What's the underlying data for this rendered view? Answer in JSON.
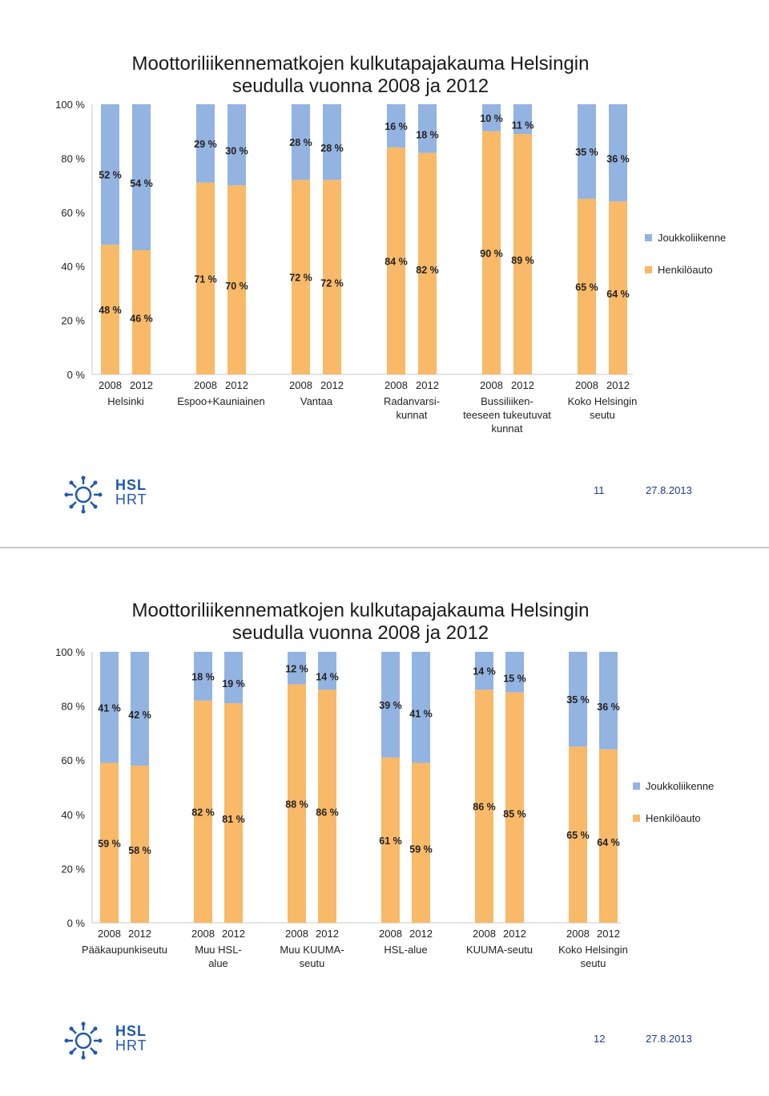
{
  "colors": {
    "henkiloauto": "#F8B968",
    "joukkoliikenne": "#93B3E1",
    "brand": "#1f57b3"
  },
  "slides": [
    {
      "title_line1": "Moottoriliikennematkojen kulkutapajakauma Helsingin",
      "title_line2": "seudulla vuonna 2008 ja 2012",
      "page_number": "11",
      "date": "27.8.2013",
      "logo_hsl": "HSL",
      "logo_hrt": "HRT",
      "chart_data": {
        "type": "bar",
        "stacked": true,
        "y_ticks": [
          "0 %",
          "20 %",
          "40 %",
          "60 %",
          "80 %",
          "100 %"
        ],
        "ylim": [
          0,
          100
        ],
        "legend": [
          "Joukkoliikenne",
          "Henkilöauto"
        ],
        "groups": [
          {
            "label_lines": [
              "Helsinki"
            ],
            "years": [
              "2008",
              "2012"
            ],
            "henkiloauto": [
              48,
              46
            ],
            "joukkoliikenne": [
              52,
              54
            ],
            "labels_auto": [
              "48 %",
              "46 %"
            ],
            "labels_jl": [
              "52 %",
              "54 %"
            ]
          },
          {
            "label_lines": [
              "Espoo+Kauniainen"
            ],
            "years": [
              "2008",
              "2012"
            ],
            "henkiloauto": [
              71,
              70
            ],
            "joukkoliikenne": [
              29,
              30
            ],
            "labels_auto": [
              "71 %",
              "70 %"
            ],
            "labels_jl": [
              "29 %",
              "30 %"
            ]
          },
          {
            "label_lines": [
              "Vantaa"
            ],
            "years": [
              "2008",
              "2012"
            ],
            "henkiloauto": [
              72,
              72
            ],
            "joukkoliikenne": [
              28,
              28
            ],
            "labels_auto": [
              "72 %",
              "72 %"
            ],
            "labels_jl": [
              "28 %",
              "28 %"
            ]
          },
          {
            "label_lines": [
              "Radanvarsi-",
              "kunnat"
            ],
            "years": [
              "2008",
              "2012"
            ],
            "henkiloauto": [
              84,
              82
            ],
            "joukkoliikenne": [
              16,
              18
            ],
            "labels_auto": [
              "84 %",
              "82 %"
            ],
            "labels_jl": [
              "16 %",
              "18 %"
            ]
          },
          {
            "label_lines": [
              "Bussiliiken-",
              "teeseen tukeutuvat",
              "kunnat"
            ],
            "years": [
              "2008",
              "2012"
            ],
            "henkiloauto": [
              90,
              89
            ],
            "joukkoliikenne": [
              10,
              11
            ],
            "labels_auto": [
              "90 %",
              "89 %"
            ],
            "labels_jl": [
              "10 %",
              "11 %"
            ]
          },
          {
            "label_lines": [
              "Koko Helsingin",
              "seutu"
            ],
            "years": [
              "2008",
              "2012"
            ],
            "henkiloauto": [
              65,
              64
            ],
            "joukkoliikenne": [
              35,
              36
            ],
            "labels_auto": [
              "65 %",
              "64 %"
            ],
            "labels_jl": [
              "35 %",
              "36 %"
            ]
          }
        ]
      }
    },
    {
      "title_line1": "Moottoriliikennematkojen kulkutapajakauma Helsingin",
      "title_line2": "seudulla vuonna 2008 ja 2012",
      "page_number": "12",
      "date": "27.8.2013",
      "logo_hsl": "HSL",
      "logo_hrt": "HRT",
      "chart_data": {
        "type": "bar",
        "stacked": true,
        "y_ticks": [
          "0 %",
          "20 %",
          "40 %",
          "60 %",
          "80 %",
          "100 %"
        ],
        "ylim": [
          0,
          100
        ],
        "legend": [
          "Joukkoliikenne",
          "Henkilöauto"
        ],
        "groups": [
          {
            "label_lines": [
              "Pääkaupunkiseutu"
            ],
            "years": [
              "2008",
              "2012"
            ],
            "henkiloauto": [
              59,
              58
            ],
            "joukkoliikenne": [
              41,
              42
            ],
            "labels_auto": [
              "59 %",
              "58 %"
            ],
            "labels_jl": [
              "41 %",
              "42 %"
            ]
          },
          {
            "label_lines": [
              "Muu HSL-",
              "alue"
            ],
            "years": [
              "2008",
              "2012"
            ],
            "henkiloauto": [
              82,
              81
            ],
            "joukkoliikenne": [
              18,
              19
            ],
            "labels_auto": [
              "82 %",
              "81 %"
            ],
            "labels_jl": [
              "18 %",
              "19 %"
            ]
          },
          {
            "label_lines": [
              "Muu KUUMA-",
              "seutu"
            ],
            "years": [
              "2008",
              "2012"
            ],
            "henkiloauto": [
              88,
              86
            ],
            "joukkoliikenne": [
              12,
              14
            ],
            "labels_auto": [
              "88 %",
              "86 %"
            ],
            "labels_jl": [
              "12 %",
              "14 %"
            ]
          },
          {
            "label_lines": [
              "HSL-alue"
            ],
            "years": [
              "2008",
              "2012"
            ],
            "henkiloauto": [
              61,
              59
            ],
            "joukkoliikenne": [
              39,
              41
            ],
            "labels_auto": [
              "61 %",
              "59 %"
            ],
            "labels_jl": [
              "39 %",
              "41 %"
            ]
          },
          {
            "label_lines": [
              "KUUMA-seutu"
            ],
            "years": [
              "2008",
              "2012"
            ],
            "henkiloauto": [
              86,
              85
            ],
            "joukkoliikenne": [
              14,
              15
            ],
            "labels_auto": [
              "86 %",
              "85 %"
            ],
            "labels_jl": [
              "14 %",
              "15 %"
            ]
          },
          {
            "label_lines": [
              "Koko Helsingin",
              "seutu"
            ],
            "years": [
              "2008",
              "2012"
            ],
            "henkiloauto": [
              65,
              64
            ],
            "joukkoliikenne": [
              35,
              36
            ],
            "labels_auto": [
              "65 %",
              "64 %"
            ],
            "labels_jl": [
              "35 %",
              "36 %"
            ]
          }
        ]
      }
    }
  ]
}
